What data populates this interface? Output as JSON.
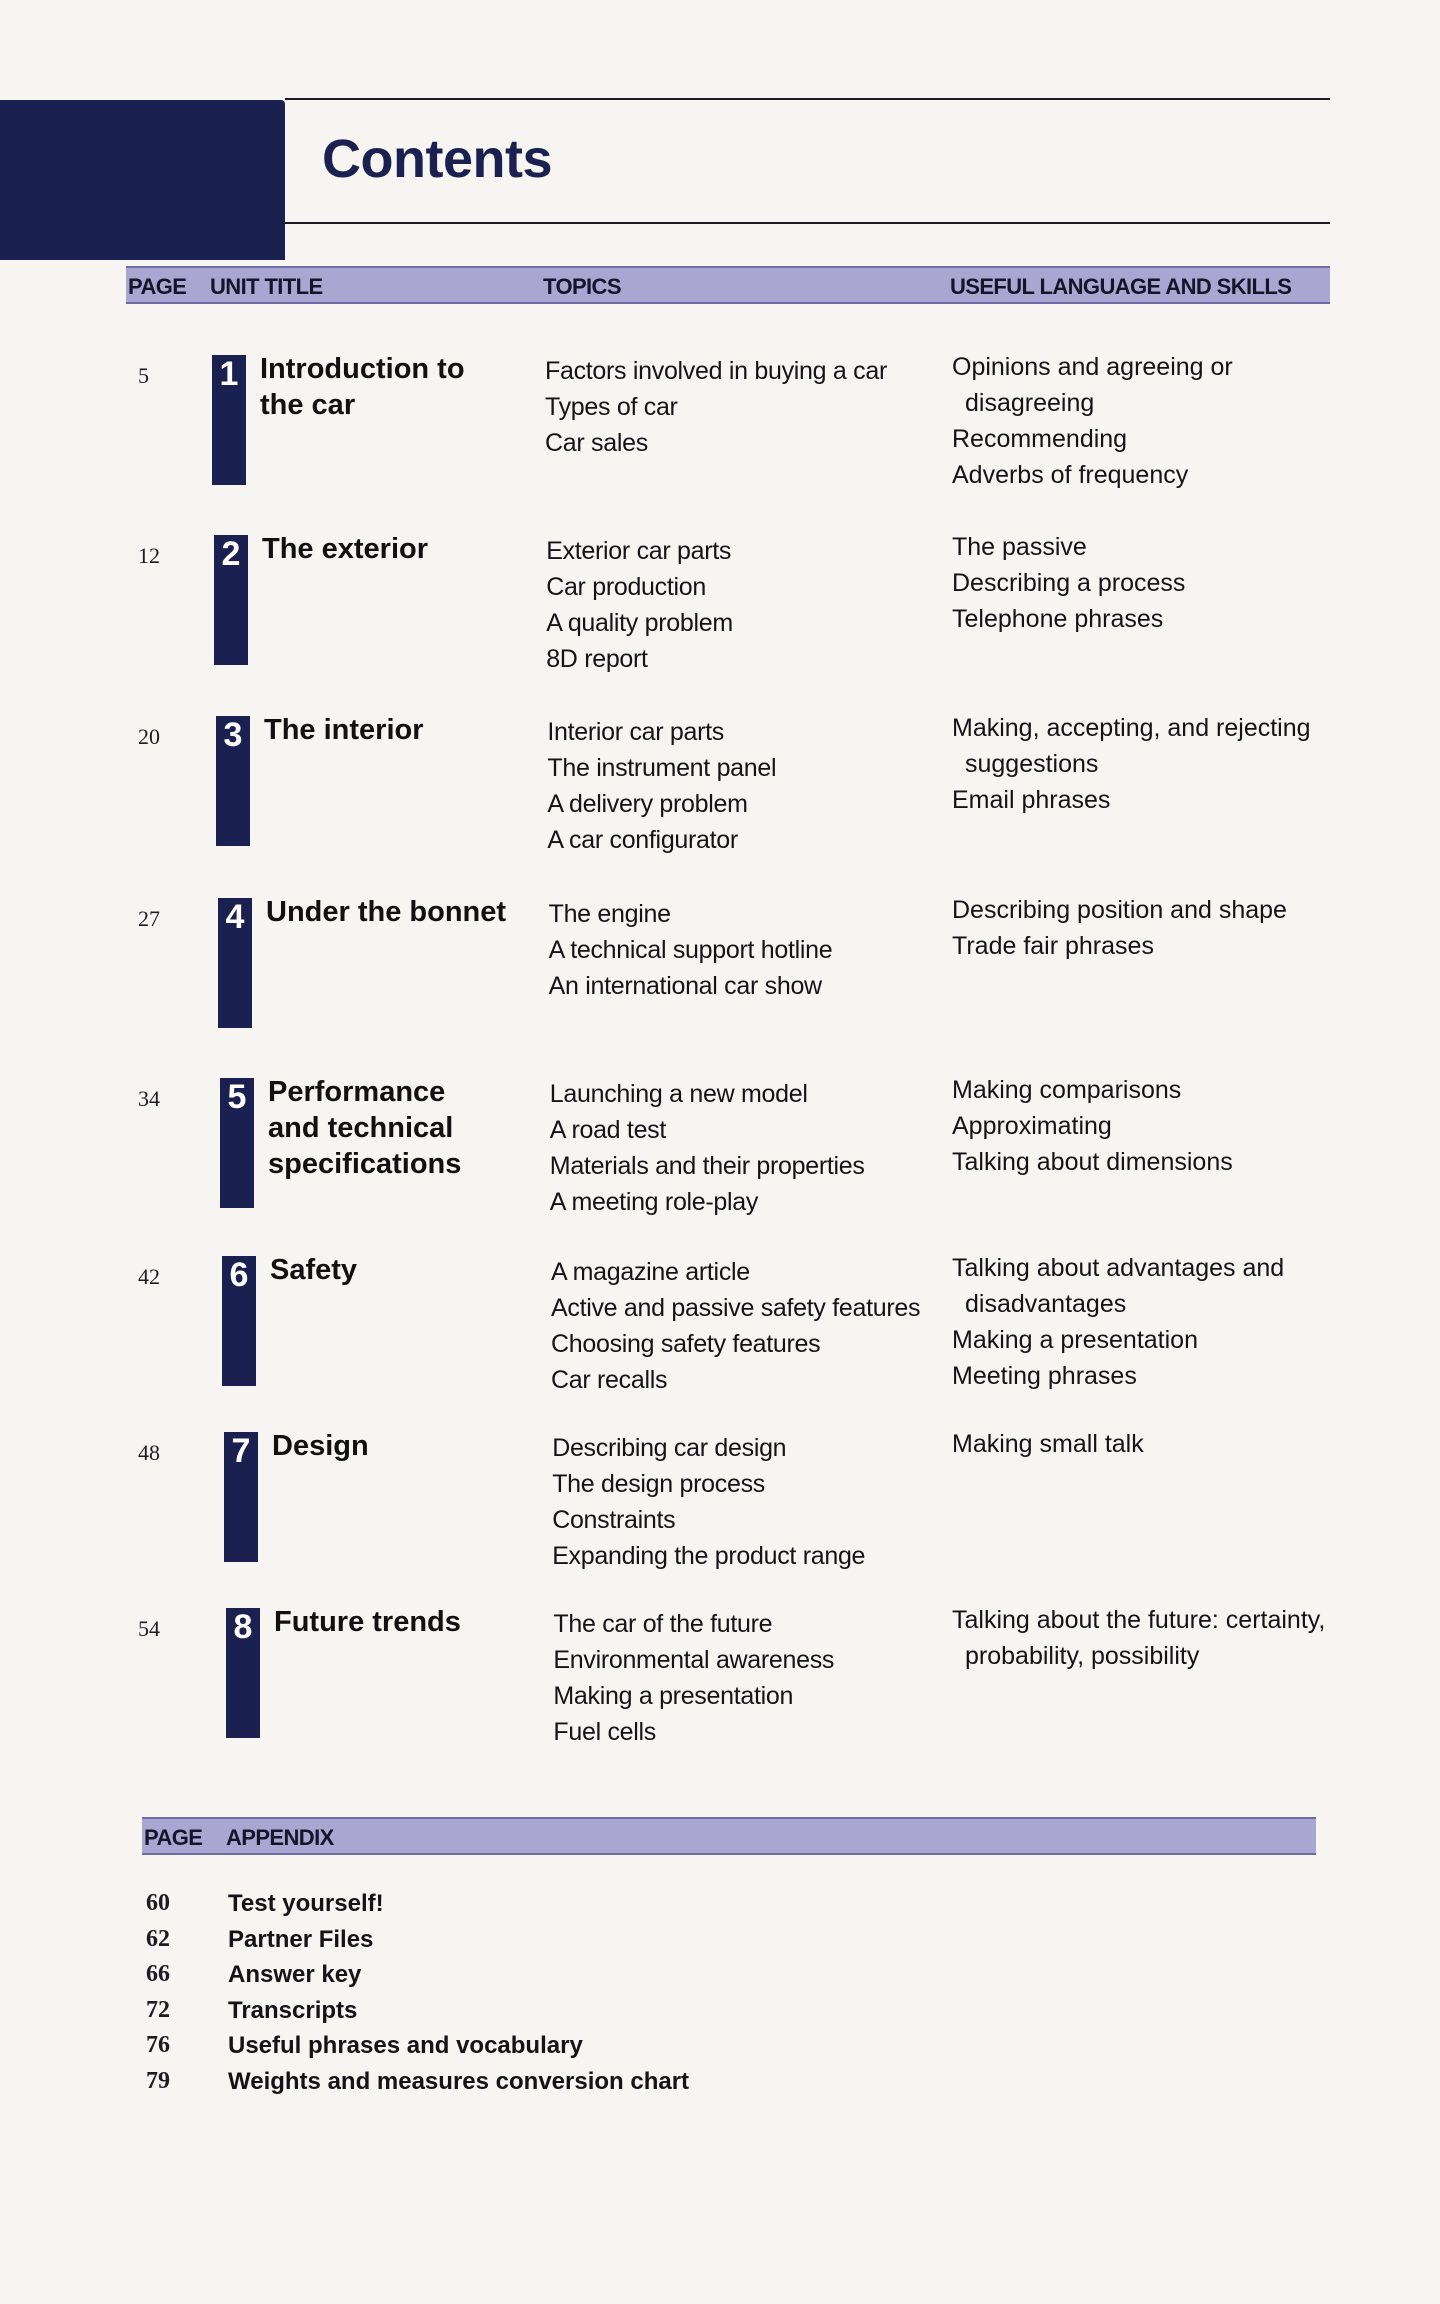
{
  "header": {
    "title": "Contents"
  },
  "columns": {
    "page": "PAGE",
    "unit_title": "UNIT TITLE",
    "topics": "TOPICS",
    "useful": "USEFUL LANGUAGE AND SKILLS"
  },
  "units": [
    {
      "page": "5",
      "number": "1",
      "title_lines": [
        "Introduction to",
        "the car"
      ],
      "topics": [
        "Factors involved in buying a car",
        "Types of car",
        "Car sales"
      ],
      "language": [
        "Opinions and agreeing or",
        "disagreeing",
        "Recommending",
        "Adverbs of frequency"
      ]
    },
    {
      "page": "12",
      "number": "2",
      "title_lines": [
        "The exterior"
      ],
      "topics": [
        "Exterior car parts",
        "Car production",
        "A quality problem",
        "8D report"
      ],
      "language": [
        "The passive",
        "Describing a process",
        "Telephone phrases"
      ]
    },
    {
      "page": "20",
      "number": "3",
      "title_lines": [
        "The interior"
      ],
      "topics": [
        "Interior car parts",
        "The instrument panel",
        "A delivery problem",
        "A car configurator"
      ],
      "language": [
        "Making, accepting, and rejecting",
        "suggestions",
        "Email phrases"
      ]
    },
    {
      "page": "27",
      "number": "4",
      "title_lines": [
        "Under the bonnet"
      ],
      "topics": [
        "The engine",
        "A technical support hotline",
        "An international car show"
      ],
      "language": [
        "Describing position and shape",
        "Trade fair phrases"
      ]
    },
    {
      "page": "34",
      "number": "5",
      "title_lines": [
        "Performance",
        "and technical",
        "specifications"
      ],
      "topics": [
        "Launching a new model",
        "A road test",
        "Materials and their properties",
        "A meeting role-play"
      ],
      "language": [
        "Making comparisons",
        "Approximating",
        "Talking about dimensions"
      ]
    },
    {
      "page": "42",
      "number": "6",
      "title_lines": [
        "Safety"
      ],
      "topics": [
        "A magazine article",
        "Active and passive safety features",
        "Choosing safety features",
        "Car recalls"
      ],
      "language": [
        "Talking about advantages and",
        "disadvantages",
        "Making a presentation",
        "Meeting phrases"
      ]
    },
    {
      "page": "48",
      "number": "7",
      "title_lines": [
        "Design"
      ],
      "topics": [
        "Describing car design",
        "The design process",
        "Constraints",
        "Expanding the product range"
      ],
      "language": [
        "Making small talk"
      ]
    },
    {
      "page": "54",
      "number": "8",
      "title_lines": [
        "Future trends"
      ],
      "topics": [
        "The car of the future",
        "Environmental awareness",
        "Making a presentation",
        "Fuel cells"
      ],
      "language": [
        "Talking about the future: certainty,",
        "probability, possibility"
      ]
    }
  ],
  "appendix": {
    "page_label": "PAGE",
    "title_label": "APPENDIX",
    "items": [
      {
        "page": "60",
        "title": "Test yourself!"
      },
      {
        "page": "62",
        "title": "Partner Files"
      },
      {
        "page": "66",
        "title": "Answer key"
      },
      {
        "page": "72",
        "title": "Transcripts"
      },
      {
        "page": "76",
        "title": "Useful phrases and vocabulary"
      },
      {
        "page": "79",
        "title": "Weights and measures conversion chart"
      }
    ]
  }
}
